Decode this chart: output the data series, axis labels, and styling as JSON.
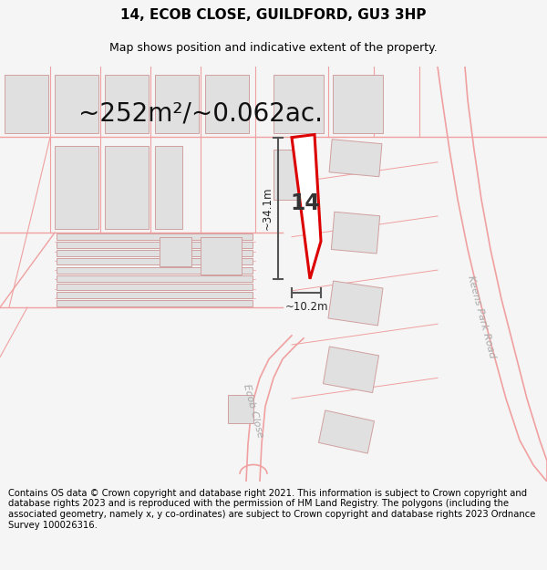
{
  "title": "14, ECOB CLOSE, GUILDFORD, GU3 3HP",
  "subtitle": "Map shows position and indicative extent of the property.",
  "area_text": "~252m²/~0.062ac.",
  "dim_height": "~34.1m",
  "dim_width": "~10.2m",
  "house_number": "14",
  "footer": "Contains OS data © Crown copyright and database right 2021. This information is subject to Crown copyright and database rights 2023 and is reproduced with the permission of HM Land Registry. The polygons (including the associated geometry, namely x, y co-ordinates) are subject to Crown copyright and database rights 2023 Ordnance Survey 100026316.",
  "bg_color": "#f5f5f5",
  "map_bg": "#ffffff",
  "plot_color": "#dd0000",
  "road_color": "#f0a0a0",
  "building_fill": "#e0e0e0",
  "building_edge": "#d0a0a0",
  "road_label1": "Ecob Close",
  "road_label2": "Keens Park Road",
  "title_fontsize": 11,
  "subtitle_fontsize": 9,
  "area_fontsize": 20,
  "footer_fontsize": 7.2,
  "dim_line_color": "#555555",
  "label_color": "#aaaaaa"
}
